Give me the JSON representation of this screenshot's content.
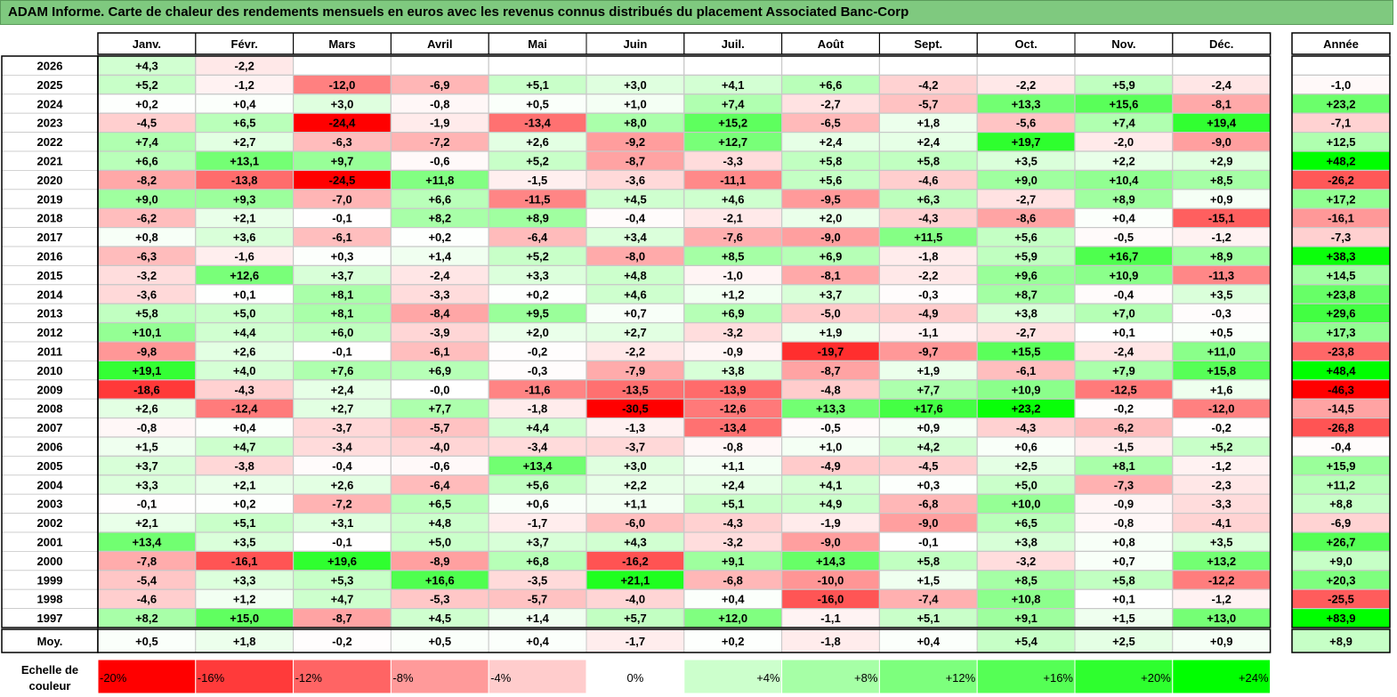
{
  "title": "ADAM Informe. Carte de chaleur des rendements mensuels en euros avec les revenus connus distribués du placement Associated Banc-Corp",
  "chart_data": {
    "type": "heatmap",
    "months": [
      "Janv.",
      "Févr.",
      "Mars",
      "Avril",
      "Mai",
      "Juin",
      "Juil.",
      "Août",
      "Sept.",
      "Oct.",
      "Nov.",
      "Déc."
    ],
    "year_header": "Année",
    "rows": [
      {
        "year": "2026",
        "values": [
          "+4,3",
          "-2,2",
          "",
          "",
          "",
          "",
          "",
          "",
          "",
          "",
          "",
          ""
        ],
        "annual": ""
      },
      {
        "year": "2025",
        "values": [
          "+5,2",
          "-1,2",
          "-12,0",
          "-6,9",
          "+5,1",
          "+3,0",
          "+4,1",
          "+6,6",
          "-4,2",
          "-2,2",
          "+5,9",
          "-2,4"
        ],
        "annual": "-1,0"
      },
      {
        "year": "2024",
        "values": [
          "+0,2",
          "+0,4",
          "+3,0",
          "-0,8",
          "+0,5",
          "+1,0",
          "+7,4",
          "-2,7",
          "-5,7",
          "+13,3",
          "+15,6",
          "-8,1"
        ],
        "annual": "+23,2"
      },
      {
        "year": "2023",
        "values": [
          "-4,5",
          "+6,5",
          "-24,4",
          "-1,9",
          "-13,4",
          "+8,0",
          "+15,2",
          "-6,5",
          "+1,8",
          "-5,6",
          "+7,4",
          "+19,4"
        ],
        "annual": "-7,1"
      },
      {
        "year": "2022",
        "values": [
          "+7,4",
          "+2,7",
          "-6,3",
          "-7,2",
          "+2,6",
          "-9,2",
          "+12,7",
          "+2,4",
          "+2,4",
          "+19,7",
          "-2,0",
          "-9,0"
        ],
        "annual": "+12,5"
      },
      {
        "year": "2021",
        "values": [
          "+6,6",
          "+13,1",
          "+9,7",
          "-0,6",
          "+5,2",
          "-8,7",
          "-3,3",
          "+5,8",
          "+5,8",
          "+3,5",
          "+2,2",
          "+2,9"
        ],
        "annual": "+48,2"
      },
      {
        "year": "2020",
        "values": [
          "-8,2",
          "-13,8",
          "-24,5",
          "+11,8",
          "-1,5",
          "-3,6",
          "-11,1",
          "+5,6",
          "-4,6",
          "+9,0",
          "+10,4",
          "+8,5"
        ],
        "annual": "-26,2"
      },
      {
        "year": "2019",
        "values": [
          "+9,0",
          "+9,3",
          "-7,0",
          "+6,6",
          "-11,5",
          "+4,5",
          "+4,6",
          "-9,5",
          "+6,3",
          "-2,7",
          "+8,9",
          "+0,9"
        ],
        "annual": "+17,2"
      },
      {
        "year": "2018",
        "values": [
          "-6,2",
          "+2,1",
          "-0,1",
          "+8,2",
          "+8,9",
          "-0,4",
          "-2,1",
          "+2,0",
          "-4,3",
          "-8,6",
          "+0,4",
          "-15,1"
        ],
        "annual": "-16,1"
      },
      {
        "year": "2017",
        "values": [
          "+0,8",
          "+3,6",
          "-6,1",
          "+0,2",
          "-6,4",
          "+3,4",
          "-7,6",
          "-9,0",
          "+11,5",
          "+5,6",
          "-0,5",
          "-1,2"
        ],
        "annual": "-7,3"
      },
      {
        "year": "2016",
        "values": [
          "-6,3",
          "-1,6",
          "+0,3",
          "+1,4",
          "+5,2",
          "-8,0",
          "+8,5",
          "+6,9",
          "-1,8",
          "+5,9",
          "+16,7",
          "+8,9"
        ],
        "annual": "+38,3"
      },
      {
        "year": "2015",
        "values": [
          "-3,2",
          "+12,6",
          "+3,7",
          "-2,4",
          "+3,3",
          "+4,8",
          "-1,0",
          "-8,1",
          "-2,2",
          "+9,6",
          "+10,9",
          "-11,3"
        ],
        "annual": "+14,5"
      },
      {
        "year": "2014",
        "values": [
          "-3,6",
          "+0,1",
          "+8,1",
          "-3,3",
          "+0,2",
          "+4,6",
          "+1,2",
          "+3,7",
          "-0,3",
          "+8,7",
          "-0,4",
          "+3,5"
        ],
        "annual": "+23,8"
      },
      {
        "year": "2013",
        "values": [
          "+5,8",
          "+5,0",
          "+8,1",
          "-8,4",
          "+9,5",
          "+0,7",
          "+6,9",
          "-5,0",
          "-4,9",
          "+3,8",
          "+7,0",
          "-0,3"
        ],
        "annual": "+29,6"
      },
      {
        "year": "2012",
        "values": [
          "+10,1",
          "+4,4",
          "+6,0",
          "-3,9",
          "+2,0",
          "+2,7",
          "-3,2",
          "+1,9",
          "-1,1",
          "-2,7",
          "+0,1",
          "+0,5"
        ],
        "annual": "+17,3"
      },
      {
        "year": "2011",
        "values": [
          "-9,8",
          "+2,6",
          "-0,1",
          "-6,1",
          "-0,2",
          "-2,2",
          "-0,9",
          "-19,7",
          "-9,7",
          "+15,5",
          "-2,4",
          "+11,0"
        ],
        "annual": "-23,8"
      },
      {
        "year": "2010",
        "values": [
          "+19,1",
          "+4,0",
          "+7,6",
          "+6,9",
          "-0,3",
          "-7,9",
          "+3,8",
          "-8,7",
          "+1,9",
          "-6,1",
          "+7,9",
          "+15,8"
        ],
        "annual": "+48,4"
      },
      {
        "year": "2009",
        "values": [
          "-18,6",
          "-4,3",
          "+2,4",
          "-0,0",
          "-11,6",
          "-13,5",
          "-13,9",
          "-4,8",
          "+7,7",
          "+10,9",
          "-12,5",
          "+1,6"
        ],
        "annual": "-46,3"
      },
      {
        "year": "2008",
        "values": [
          "+2,6",
          "-12,4",
          "+2,7",
          "+7,7",
          "-1,8",
          "-30,5",
          "-12,6",
          "+13,3",
          "+17,6",
          "+23,2",
          "-0,2",
          "-12,0"
        ],
        "annual": "-14,5"
      },
      {
        "year": "2007",
        "values": [
          "-0,8",
          "+0,4",
          "-3,7",
          "-5,7",
          "+4,4",
          "-1,3",
          "-13,4",
          "-0,5",
          "+0,9",
          "-4,3",
          "-6,2",
          "-0,2"
        ],
        "annual": "-26,8"
      },
      {
        "year": "2006",
        "values": [
          "+1,5",
          "+4,7",
          "-3,4",
          "-4,0",
          "-3,4",
          "-3,7",
          "-0,8",
          "+1,0",
          "+4,2",
          "+0,6",
          "-1,5",
          "+5,2"
        ],
        "annual": "-0,4"
      },
      {
        "year": "2005",
        "values": [
          "+3,7",
          "-3,8",
          "-0,4",
          "-0,6",
          "+13,4",
          "+3,0",
          "+1,1",
          "-4,9",
          "-4,5",
          "+2,5",
          "+8,1",
          "-1,2"
        ],
        "annual": "+15,9"
      },
      {
        "year": "2004",
        "values": [
          "+3,3",
          "+2,1",
          "+2,6",
          "-6,4",
          "+5,6",
          "+2,2",
          "+2,4",
          "+4,1",
          "+0,3",
          "+5,0",
          "-7,3",
          "-2,3"
        ],
        "annual": "+11,2"
      },
      {
        "year": "2003",
        "values": [
          "-0,1",
          "+0,2",
          "-7,2",
          "+6,5",
          "+0,6",
          "+1,1",
          "+5,1",
          "+4,9",
          "-6,8",
          "+10,0",
          "-0,9",
          "-3,3"
        ],
        "annual": "+8,8"
      },
      {
        "year": "2002",
        "values": [
          "+2,1",
          "+5,1",
          "+3,1",
          "+4,8",
          "-1,7",
          "-6,0",
          "-4,3",
          "-1,9",
          "-9,0",
          "+6,5",
          "-0,8",
          "-4,1"
        ],
        "annual": "-6,9"
      },
      {
        "year": "2001",
        "values": [
          "+13,4",
          "+3,5",
          "-0,1",
          "+5,0",
          "+3,7",
          "+4,3",
          "-3,2",
          "-9,0",
          "-0,1",
          "+3,8",
          "+0,8",
          "+3,5"
        ],
        "annual": "+26,7"
      },
      {
        "year": "2000",
        "values": [
          "-7,8",
          "-16,1",
          "+19,6",
          "-8,9",
          "+6,8",
          "-16,2",
          "+9,1",
          "+14,3",
          "+5,8",
          "-3,2",
          "+0,7",
          "+13,2"
        ],
        "annual": "+9,0"
      },
      {
        "year": "1999",
        "values": [
          "-5,4",
          "+3,3",
          "+5,3",
          "+16,6",
          "-3,5",
          "+21,1",
          "-6,8",
          "-10,0",
          "+1,5",
          "+8,5",
          "+5,8",
          "-12,2"
        ],
        "annual": "+20,3"
      },
      {
        "year": "1998",
        "values": [
          "-4,6",
          "+1,2",
          "+4,7",
          "-5,3",
          "-5,7",
          "-4,0",
          "+0,4",
          "-16,0",
          "-7,4",
          "+10,8",
          "+0,1",
          "-1,2"
        ],
        "annual": "-25,5"
      },
      {
        "year": "1997",
        "values": [
          "+8,2",
          "+15,0",
          "-8,7",
          "+4,5",
          "+1,4",
          "+5,7",
          "+12,0",
          "-1,1",
          "+5,1",
          "+9,1",
          "+1,5",
          "+13,0"
        ],
        "annual": "+83,9"
      }
    ],
    "average": {
      "label": "Moy.",
      "values": [
        "+0,5",
        "+1,8",
        "-0,2",
        "+0,5",
        "+0,4",
        "-1,7",
        "+0,2",
        "-1,8",
        "+0,4",
        "+5,4",
        "+2,5",
        "+0,9"
      ],
      "annual": "+8,9"
    },
    "scale": {
      "label_line1": "Echelle de",
      "label_line2": "couleur",
      "steps": [
        {
          "label": "-20%",
          "color": "#ff0000"
        },
        {
          "label": "-16%",
          "color": "#ff3a3a"
        },
        {
          "label": "-12%",
          "color": "#ff6464"
        },
        {
          "label": "-8%",
          "color": "#ff9a9a"
        },
        {
          "label": "-4%",
          "color": "#ffcccc"
        },
        {
          "label": "0%",
          "color": "#ffffff"
        },
        {
          "label": "+4%",
          "color": "#ccffcc"
        },
        {
          "label": "+8%",
          "color": "#a6ffa6"
        },
        {
          "label": "+12%",
          "color": "#7dff7d"
        },
        {
          "label": "+16%",
          "color": "#55ff55"
        },
        {
          "label": "+20%",
          "color": "#2eff2e"
        },
        {
          "label": "+24%",
          "color": "#00ff00"
        }
      ]
    }
  }
}
